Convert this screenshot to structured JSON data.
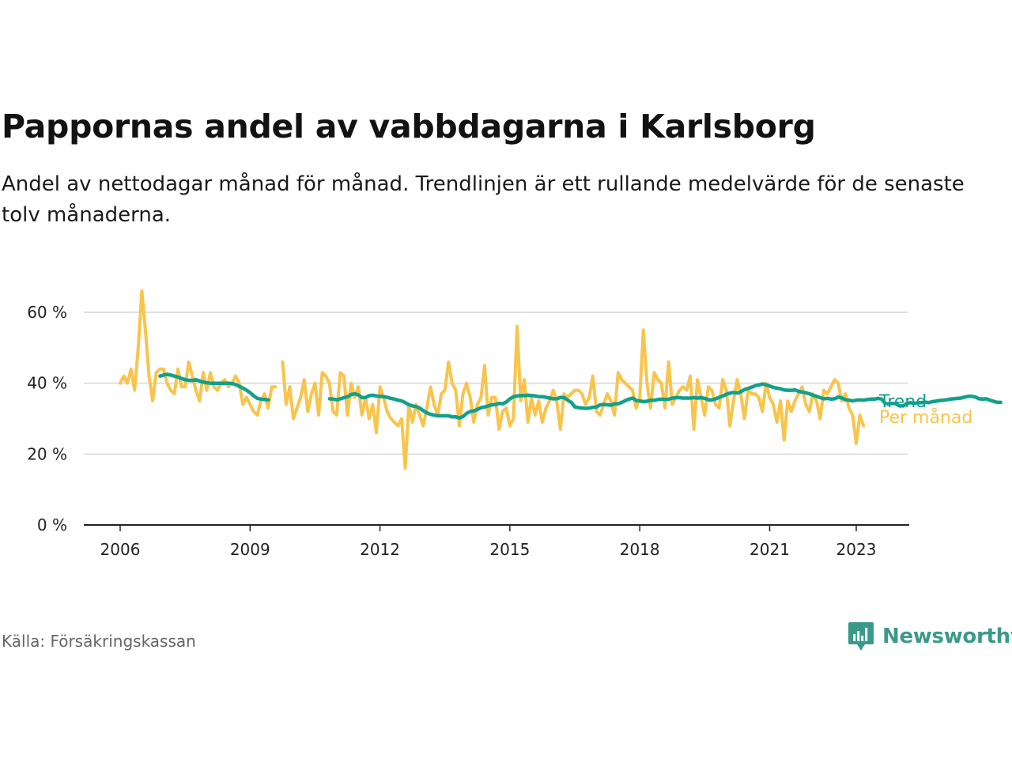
{
  "title": "Pappornas andel av vabbdagarna i Karlsborg",
  "subtitle": "Andel av nettodagar månad för månad. Trendlinjen är ett rullande medelvärde för de senaste tolv månaderna.",
  "source": "Källa: Försäkringskassan",
  "logo_text": "Newsworthy",
  "colors": {
    "monthly": "#f9c44c",
    "trend": "#12a08b",
    "logo": "#3a9a8a"
  },
  "chart_data": {
    "type": "line",
    "title": "Pappornas andel av vabbdagarna i Karlsborg",
    "xlabel": "",
    "ylabel": "",
    "xlim": [
      2005.9,
      2024.0
    ],
    "ylim": [
      0,
      70
    ],
    "yticks": [
      0,
      20,
      40,
      60
    ],
    "ytick_labels": [
      "0 %",
      "20 %",
      "40 %",
      "60 %"
    ],
    "xticks": [
      2006,
      2009,
      2012,
      2015,
      2018,
      2021,
      2023
    ],
    "xtick_labels": [
      "2006",
      "2009",
      "2012",
      "2015",
      "2018",
      "2021",
      "2023"
    ],
    "grid": true,
    "series": [
      {
        "name": "Per månad",
        "x_start": 2006.0,
        "step": 0.08333,
        "values": [
          40,
          42,
          40,
          44,
          38,
          50,
          66,
          55,
          42,
          35,
          43,
          44,
          44,
          40,
          38,
          37,
          44,
          39,
          39,
          46,
          42,
          38,
          35,
          43,
          38,
          43,
          39,
          38,
          40,
          41,
          39,
          40,
          42,
          40,
          34,
          36,
          34,
          32,
          31,
          35,
          37,
          33,
          39,
          39,
          null,
          46,
          34,
          39,
          30,
          33,
          36,
          41,
          32,
          37,
          40,
          31,
          43,
          42,
          40,
          32,
          31,
          43,
          42,
          31,
          40,
          36,
          39,
          31,
          36,
          30,
          34,
          26,
          39,
          36,
          32,
          30,
          29,
          28,
          30,
          16,
          34,
          29,
          34,
          31,
          28,
          33,
          39,
          34,
          31,
          37,
          38,
          46,
          40,
          38,
          28,
          37,
          40,
          36,
          29,
          34,
          36,
          45,
          31,
          36,
          36,
          27,
          32,
          33,
          28,
          30,
          56,
          35,
          41,
          29,
          36,
          31,
          35,
          29,
          33,
          35,
          38,
          35,
          27,
          37,
          36,
          37,
          38,
          38,
          37,
          34,
          36,
          42,
          32,
          31,
          34,
          37,
          35,
          31,
          43,
          41,
          40,
          39,
          38,
          33,
          36,
          55,
          40,
          33,
          43,
          41,
          40,
          33,
          46,
          34,
          36,
          38,
          39,
          38,
          42,
          27,
          41,
          36,
          31,
          39,
          38,
          34,
          33,
          41,
          38,
          28,
          35,
          41,
          37,
          30,
          38,
          37,
          37,
          36,
          32,
          40,
          36,
          34,
          29,
          35,
          24,
          35,
          32,
          35,
          37,
          39,
          34,
          32,
          37,
          35,
          30,
          38,
          37,
          39,
          41,
          40,
          35,
          37,
          33,
          31,
          23,
          31,
          28
        ],
        "gap_note": ""
      },
      {
        "name": "Trend",
        "x_start": 2006.92,
        "step": 0.08333,
        "values": [
          42,
          42.3,
          42.5,
          42.3,
          42,
          41.7,
          41.3,
          41,
          40.8,
          40.8,
          41,
          40.6,
          40.3,
          40.1,
          40,
          40,
          40,
          40,
          40,
          40,
          39.9,
          39.6,
          39.1,
          38.6,
          38,
          37.3,
          36.4,
          35.7,
          35.5,
          35.4,
          35.3,
          null,
          null,
          null,
          null,
          null,
          null,
          null,
          null,
          null,
          null,
          null,
          null,
          null,
          null,
          null,
          null,
          35.6,
          35.5,
          35.3,
          35.6,
          35.9,
          36.2,
          36.8,
          37,
          36.7,
          35.9,
          36,
          36.5,
          36.6,
          36.4,
          36.3,
          36.2,
          36,
          35.7,
          35.5,
          35.2,
          35,
          34.5,
          33.9,
          33.6,
          33.4,
          33,
          32.2,
          31.6,
          31.2,
          31,
          30.8,
          30.8,
          30.8,
          30.8,
          30.5,
          30.5,
          30.2,
          30.6,
          31.5,
          32,
          32.2,
          32.6,
          33.1,
          33.3,
          33.6,
          33.9,
          34,
          34.3,
          34.2,
          34.7,
          35.6,
          36.2,
          36.4,
          36.5,
          36.5,
          36.6,
          36.5,
          36.4,
          36.2,
          36.2,
          36,
          35.8,
          35.6,
          35.6,
          36,
          35.9,
          35.2,
          34.6,
          33.3,
          33.1,
          33,
          32.9,
          33,
          33.2,
          33.3,
          33.9,
          34,
          33.9,
          33.8,
          34.2,
          34.2,
          34.6,
          35.1,
          35.5,
          35.8,
          35.1,
          35,
          34.8,
          34.9,
          35.2,
          35.2,
          35.4,
          35.5,
          35.4,
          35.5,
          35.8,
          35.9,
          35.9,
          35.8,
          35.8,
          35.8,
          35.9,
          35.8,
          35.9,
          35.7,
          35.3,
          35.3,
          35.6,
          36,
          36.4,
          36.9,
          37.2,
          37.4,
          37.2,
          37.6,
          38.2,
          38.5,
          38.9,
          39.3,
          39.5,
          39.8,
          39.5,
          39.2,
          38.8,
          38.6,
          38.4,
          38.1,
          38,
          38,
          38.1,
          37.7,
          37.5,
          37.3,
          37,
          36.6,
          36.3,
          35.9,
          35.6,
          35.7,
          35.5,
          35.6,
          36.1,
          35.8,
          35.3,
          35.2,
          35,
          35.2,
          35.3,
          35.2,
          35.4,
          35.5,
          35.5,
          35.7,
          35.5,
          34.3,
          34.1,
          34.3,
          34.2,
          33.6,
          33.6,
          34.3,
          34.5,
          34.3,
          34.5,
          34.5,
          34.7,
          34.5,
          34.8,
          34.9,
          35.1,
          35.2,
          35.3,
          35.5,
          35.6,
          35.7,
          35.8,
          36.1,
          36.3,
          36.3,
          36.1,
          35.6,
          35.5,
          35.6,
          35.2,
          34.9,
          34.6,
          34.6
        ]
      }
    ],
    "annotations": [
      "Trend",
      "Per månad"
    ]
  }
}
